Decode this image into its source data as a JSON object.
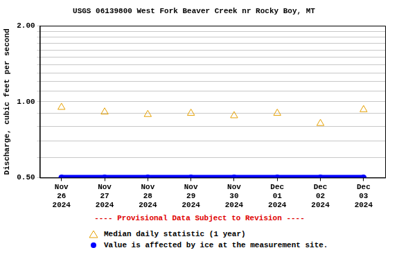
{
  "chart_data": {
    "type": "line",
    "title": "USGS 06139800 West Fork Beaver Creek nr Rocky Boy, MT",
    "y_label": "Discharge, cubic feet per second",
    "annotation": "---- Provisional Data Subject to Revision ----",
    "categories": [
      "Nov 26 2024",
      "Nov 27 2024",
      "Nov 28 2024",
      "Nov 29 2024",
      "Nov 30 2024",
      "Dec 01 2024",
      "Dec 02 2024",
      "Dec 03 2024"
    ],
    "series": [
      {
        "name": "Median daily statistic (1 year)",
        "color": "#e6a000",
        "marker": "triangle",
        "line_style": "none",
        "values": [
          0.95,
          0.91,
          0.89,
          0.9,
          0.88,
          0.9,
          0.82,
          0.93
        ]
      },
      {
        "name": "Value is affected by ice at the measurement site.",
        "color": "#0000ff",
        "marker": "circle",
        "line_style": "solid",
        "values": [
          0.5,
          0.5,
          0.5,
          0.5,
          0.5,
          0.5,
          0.5,
          0.5
        ]
      }
    ],
    "log": "y",
    "ylim": [
      0.5,
      2
    ],
    "yticks": [
      {
        "value": 0.5,
        "label": "0.50"
      },
      {
        "value": 1,
        "label": "1.00"
      },
      {
        "value": 2,
        "label": "2.00"
      }
    ],
    "y_minor_ticks": [
      0.6,
      0.7,
      0.8,
      0.9,
      1.1,
      1.2,
      1.3,
      1.4,
      1.5,
      1.6,
      1.7,
      1.8,
      1.9
    ],
    "grid": true,
    "legend": "bottom"
  }
}
